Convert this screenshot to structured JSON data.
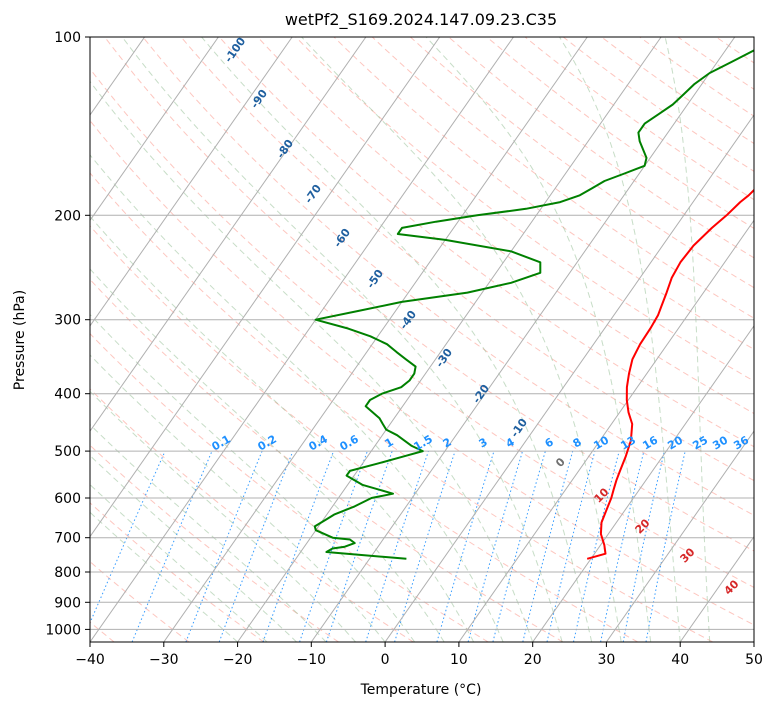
{
  "chart_data": {
    "type": "line",
    "subtype": "skew-T log-P diagram",
    "title": "wetPf2_S169.2024.147.09.23.C35",
    "xlabel": "Temperature (°C)",
    "ylabel": "Pressure (hPa)",
    "xlim": [
      -40,
      50
    ],
    "ylim": [
      1050,
      100
    ],
    "y_scale": "log",
    "x_ticks": [
      -40,
      -30,
      -20,
      -10,
      0,
      10,
      20,
      30,
      40,
      50
    ],
    "y_ticks": [
      100,
      200,
      300,
      400,
      500,
      600,
      700,
      800,
      900,
      1000
    ],
    "grid": true,
    "colors": {
      "temperature": "#ff0000",
      "dewpoint": "#008000",
      "isotherm_grid": "#b0b0b0",
      "dry_adiabat": "#fa8072",
      "moist_adiabat": "#8fbc8f",
      "mixing_ratio": "#1e90ff"
    },
    "series": [
      {
        "name": "Temperature",
        "points": [
          [
            19.5,
            760
          ],
          [
            21.5,
            745
          ],
          [
            20.5,
            720
          ],
          [
            19.0,
            690
          ],
          [
            18.0,
            660
          ],
          [
            17.5,
            630
          ],
          [
            17.0,
            600
          ],
          [
            16.5,
            580
          ],
          [
            16.0,
            560
          ],
          [
            15.6,
            540
          ],
          [
            15.0,
            510
          ],
          [
            14.2,
            480
          ],
          [
            12.8,
            450
          ],
          [
            11.2,
            430
          ],
          [
            9.8,
            410
          ],
          [
            8.6,
            390
          ],
          [
            7.6,
            370
          ],
          [
            6.7,
            350
          ],
          [
            6.3,
            330
          ],
          [
            6.2,
            310
          ],
          [
            6.0,
            295
          ],
          [
            5.6,
            285
          ],
          [
            5.0,
            270
          ],
          [
            4.3,
            255
          ],
          [
            4.0,
            240
          ],
          [
            4.2,
            225
          ],
          [
            5.0,
            210
          ],
          [
            5.8,
            200
          ],
          [
            6.4,
            190
          ],
          [
            6.9,
            185
          ],
          [
            7.2,
            180
          ],
          [
            8.0,
            170
          ],
          [
            8.6,
            160
          ],
          [
            9.0,
            150
          ],
          [
            9.3,
            140
          ],
          [
            9.2,
            130
          ],
          [
            8.8,
            122
          ],
          [
            8.0,
            115
          ],
          [
            7.2,
            108
          ],
          [
            6.4,
            100
          ]
        ]
      },
      {
        "name": "Dewpoint",
        "points": [
          [
            -5.0,
            760
          ],
          [
            -16.5,
            740
          ],
          [
            -16.0,
            730
          ],
          [
            -14.5,
            725
          ],
          [
            -13.5,
            715
          ],
          [
            -14.5,
            705
          ],
          [
            -17.0,
            700
          ],
          [
            -20.0,
            680
          ],
          [
            -20.5,
            670
          ],
          [
            -19.5,
            650
          ],
          [
            -19.0,
            640
          ],
          [
            -17.0,
            620
          ],
          [
            -15.5,
            600
          ],
          [
            -13.0,
            590
          ],
          [
            -18.0,
            570
          ],
          [
            -21.0,
            550
          ],
          [
            -21.0,
            540
          ],
          [
            -18.0,
            525
          ],
          [
            -15.0,
            510
          ],
          [
            -13.0,
            500
          ],
          [
            -15.0,
            490
          ],
          [
            -18.0,
            470
          ],
          [
            -20.0,
            460
          ],
          [
            -21.0,
            450
          ],
          [
            -22.0,
            440
          ],
          [
            -25.0,
            420
          ],
          [
            -25.0,
            410
          ],
          [
            -24.0,
            400
          ],
          [
            -22.0,
            390
          ],
          [
            -21.5,
            380
          ],
          [
            -21.5,
            370
          ],
          [
            -22.0,
            360
          ],
          [
            -24.0,
            350
          ],
          [
            -26.0,
            340
          ],
          [
            -28.0,
            330
          ],
          [
            -31.0,
            320
          ],
          [
            -35.0,
            310
          ],
          [
            -40.0,
            300
          ],
          [
            -35.0,
            290
          ],
          [
            -30.0,
            280
          ],
          [
            -22.0,
            270
          ],
          [
            -17.0,
            260
          ],
          [
            -14.0,
            250
          ],
          [
            -15.0,
            240
          ],
          [
            -20.0,
            230
          ],
          [
            -30.0,
            220
          ],
          [
            -37.0,
            215
          ],
          [
            -37.0,
            210
          ],
          [
            -33.0,
            205
          ],
          [
            -28.0,
            200
          ],
          [
            -22.0,
            195
          ],
          [
            -18.0,
            190
          ],
          [
            -16.0,
            185
          ],
          [
            -15.0,
            180
          ],
          [
            -14.0,
            175
          ],
          [
            -12.0,
            170
          ],
          [
            -10.0,
            165
          ],
          [
            -10.5,
            160
          ],
          [
            -13.0,
            150
          ],
          [
            -14.0,
            145
          ],
          [
            -14.0,
            140
          ],
          [
            -13.0,
            135
          ],
          [
            -12.0,
            130
          ],
          [
            -11.5,
            125
          ],
          [
            -11.0,
            120
          ],
          [
            -10.0,
            115
          ],
          [
            -8.0,
            110
          ],
          [
            -6.0,
            105
          ],
          [
            -4.0,
            100
          ]
        ]
      }
    ],
    "dry_adiabat_labels": [
      "-100",
      "-90",
      "-80",
      "-70",
      "-60",
      "-50",
      "-40",
      "-30",
      "-20",
      "-10"
    ],
    "moist_adiabat_labels": [
      "0",
      "10",
      "20",
      "30",
      "40"
    ],
    "mixing_ratio_labels": [
      "0.1",
      "0.2",
      "0.4",
      "0.6",
      "1",
      "1.5",
      "2",
      "3",
      "4",
      "6",
      "8",
      "10",
      "13",
      "16",
      "20",
      "25",
      "30",
      "36"
    ]
  }
}
